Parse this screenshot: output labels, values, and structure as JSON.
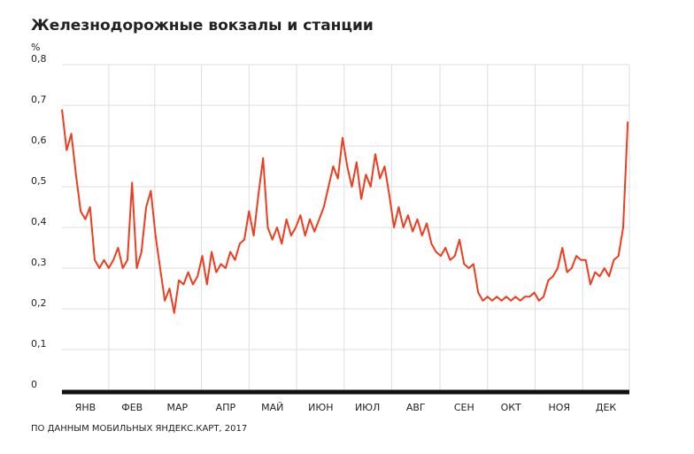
{
  "chart_data": {
    "type": "line",
    "title": "Железнодорожные вокзалы и станции",
    "y_label": "%",
    "source": "ПО ДАННЫМ МОБИЛЬНЫХ ЯНДЕКС.КАРТ, 2017",
    "x": [
      0,
      3,
      6,
      9,
      12,
      15,
      18,
      21,
      24,
      27,
      30,
      33,
      36,
      39,
      42,
      45,
      48,
      51,
      54,
      57,
      60,
      63,
      66,
      69,
      72,
      75,
      78,
      81,
      84,
      87,
      90,
      93,
      96,
      99,
      102,
      105,
      108,
      111,
      114,
      117,
      120,
      123,
      126,
      129,
      132,
      135,
      138,
      141,
      144,
      147,
      150,
      153,
      156,
      159,
      162,
      165,
      168,
      171,
      174,
      177,
      180,
      183,
      186,
      189,
      192,
      195,
      198,
      201,
      204,
      207,
      210,
      213,
      216,
      219,
      222,
      225,
      228,
      231,
      234,
      237,
      240,
      243,
      246,
      249,
      252,
      255,
      258,
      261,
      264,
      267,
      270,
      273,
      276,
      279,
      282,
      285,
      288,
      291,
      294,
      297,
      300,
      303,
      306,
      309,
      312,
      315,
      318,
      321,
      324,
      327,
      330,
      333,
      336,
      339,
      342,
      345,
      348,
      351,
      354,
      357,
      360,
      363
    ],
    "series": [
      {
        "name": "Железнодорожные вокзалы и станции",
        "color": "#f03c1e",
        "values": [
          0.69,
          0.59,
          0.63,
          0.53,
          0.44,
          0.42,
          0.45,
          0.32,
          0.3,
          0.32,
          0.3,
          0.32,
          0.35,
          0.3,
          0.32,
          0.51,
          0.3,
          0.34,
          0.45,
          0.49,
          0.38,
          0.3,
          0.22,
          0.25,
          0.19,
          0.27,
          0.26,
          0.29,
          0.26,
          0.28,
          0.33,
          0.26,
          0.34,
          0.29,
          0.31,
          0.3,
          0.34,
          0.32,
          0.36,
          0.37,
          0.44,
          0.38,
          0.48,
          0.57,
          0.4,
          0.37,
          0.4,
          0.36,
          0.42,
          0.38,
          0.4,
          0.43,
          0.38,
          0.42,
          0.39,
          0.42,
          0.45,
          0.5,
          0.55,
          0.52,
          0.62,
          0.55,
          0.5,
          0.56,
          0.47,
          0.53,
          0.5,
          0.58,
          0.52,
          0.55,
          0.48,
          0.4,
          0.45,
          0.4,
          0.43,
          0.39,
          0.42,
          0.38,
          0.41,
          0.36,
          0.34,
          0.33,
          0.35,
          0.32,
          0.33,
          0.37,
          0.31,
          0.3,
          0.31,
          0.24,
          0.22,
          0.23,
          0.22,
          0.23,
          0.22,
          0.23,
          0.22,
          0.23,
          0.22,
          0.23,
          0.23,
          0.24,
          0.22,
          0.23,
          0.27,
          0.28,
          0.3,
          0.35,
          0.29,
          0.3,
          0.33,
          0.32,
          0.32,
          0.26,
          0.29,
          0.28,
          0.3,
          0.28,
          0.32,
          0.33,
          0.4,
          0.66
        ]
      }
    ],
    "xlim": [
      0,
      364
    ],
    "xticks": [
      {
        "value": 15,
        "label": "ЯНВ"
      },
      {
        "value": 45,
        "label": "ФЕВ"
      },
      {
        "value": 74,
        "label": "МАР"
      },
      {
        "value": 105,
        "label": "АПР"
      },
      {
        "value": 135,
        "label": "МАЙ"
      },
      {
        "value": 166,
        "label": "ИЮН"
      },
      {
        "value": 196,
        "label": "ИЮЛ"
      },
      {
        "value": 227,
        "label": "АВГ"
      },
      {
        "value": 258,
        "label": "СЕН"
      },
      {
        "value": 288,
        "label": "ОКТ"
      },
      {
        "value": 319,
        "label": "НОЯ"
      },
      {
        "value": 349,
        "label": "ДЕК"
      }
    ],
    "ylim": [
      0,
      0.8
    ],
    "yticks": [
      0,
      {
        "value": 0.1,
        "label": "0,1"
      },
      {
        "value": 0.2,
        "label": "0,2"
      },
      {
        "value": 0.3,
        "label": "0,3"
      },
      {
        "value": 0.4,
        "label": "0,4"
      },
      {
        "value": 0.5,
        "label": "0,5"
      },
      {
        "value": 0.6,
        "label": "0,6"
      },
      {
        "value": 0.7,
        "label": "0,7"
      },
      {
        "value": 0.8,
        "label": "0,8"
      }
    ],
    "grid": true
  }
}
